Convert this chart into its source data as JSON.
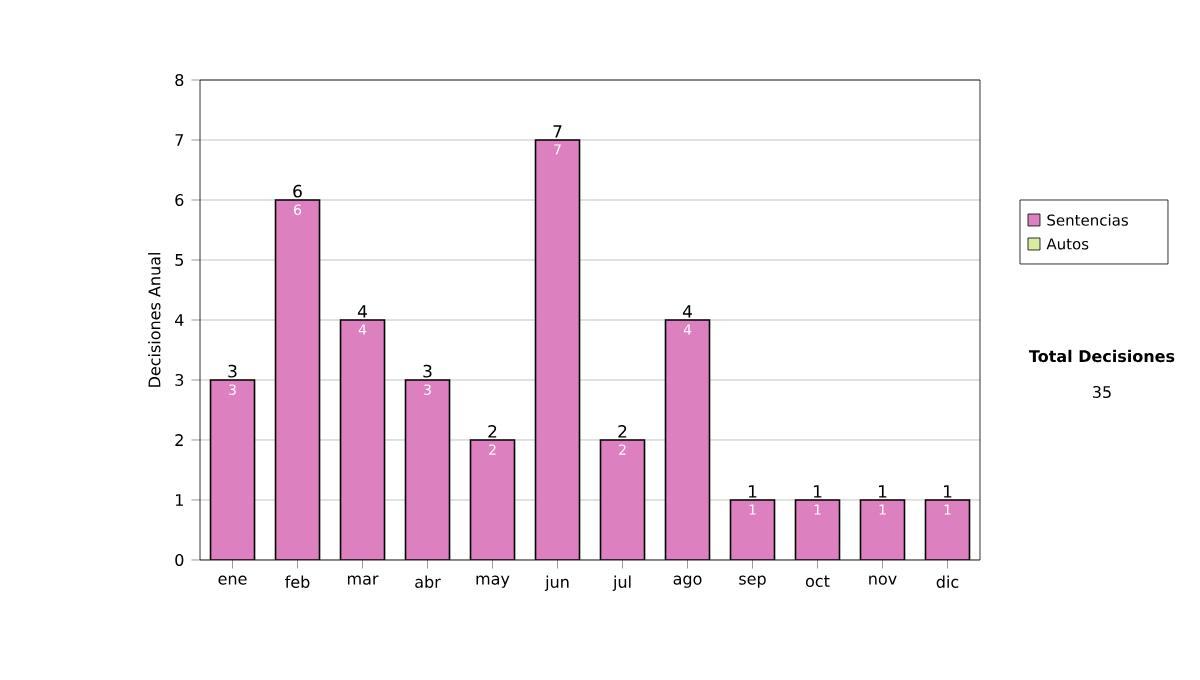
{
  "chart_data": {
    "type": "bar",
    "stacked": true,
    "ylabel": "Decisiones Anual",
    "categories": [
      "ene",
      "feb",
      "mar",
      "abr",
      "may",
      "jun",
      "jul",
      "ago",
      "sep",
      "oct",
      "nov",
      "dic"
    ],
    "series": [
      {
        "name": "Sentencias",
        "color": "#dd80c0",
        "values": [
          3,
          6,
          4,
          3,
          2,
          7,
          2,
          4,
          1,
          1,
          1,
          1
        ],
        "value_labels": [
          "3",
          "6",
          "4",
          "3",
          "2",
          "7",
          "2",
          "4",
          "1",
          "1",
          "1",
          "1"
        ]
      },
      {
        "name": "Autos",
        "color": "#d8eca0",
        "values": [
          0,
          0,
          0,
          0,
          0,
          0,
          0,
          0,
          0,
          0,
          0,
          0
        ]
      }
    ],
    "totals": [
      "3",
      "6",
      "4",
      "3",
      "2",
      "7",
      "2",
      "4",
      "1",
      "1",
      "1",
      "1"
    ],
    "ylim": [
      0,
      8
    ],
    "yticks": [
      0,
      1,
      2,
      3,
      4,
      5,
      6,
      7,
      8
    ],
    "grid": "y",
    "legend": "right",
    "annotations": [
      "Total Decisiones",
      "35"
    ]
  }
}
